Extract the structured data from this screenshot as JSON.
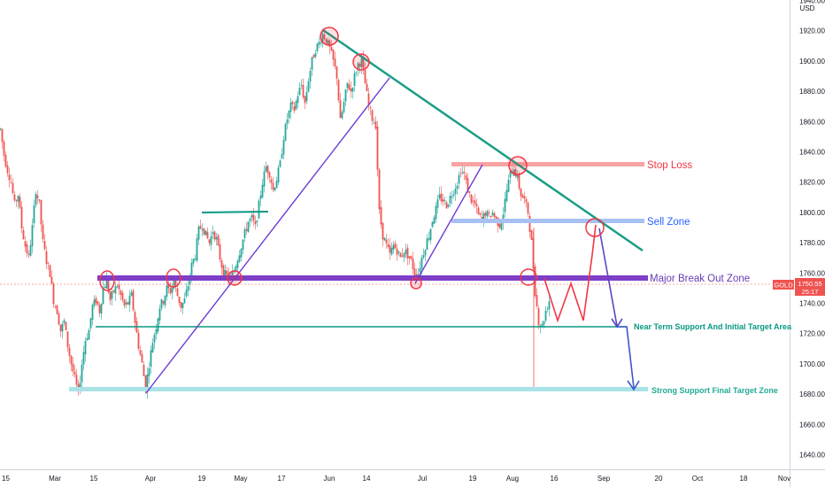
{
  "chart_data": {
    "type": "candlestick",
    "symbol": "GOLD",
    "currency": "USD",
    "last_price": "1750.55",
    "countdown": "25:17",
    "colors": {
      "up": "#26a69a",
      "down": "#ef5350",
      "price_tag": "#ef5350"
    },
    "y_ticks": [
      "1940.00",
      "1920.00",
      "1900.00",
      "1880.00",
      "1860.00",
      "1840.00",
      "1820.00",
      "1800.00",
      "1780.00",
      "1760.00",
      "1740.00",
      "1720.00",
      "1700.00",
      "1680.00",
      "1660.00",
      "1640.00"
    ],
    "x_ticks": [
      "15",
      "Mar",
      "15",
      "Apr",
      "19",
      "May",
      "17",
      "Jun",
      "14",
      "Jul",
      "19",
      "Aug",
      "16",
      "Sep",
      "20",
      "Oct",
      "18",
      "Nov"
    ],
    "ylim": [
      1632,
      1941
    ],
    "annotations": {
      "stop_loss": "Stop Loss",
      "sell_zone": "Sell Zone",
      "breakout": "Major Break Out Zone",
      "near_support": "Near Term Support And Initial Target Area",
      "strong_support": "Strong Support Final Target Zone"
    },
    "annotation_colors": {
      "stop_loss": "#f23645",
      "sell_zone": "#2962ff",
      "breakout": "#673ab7",
      "near_support": "#089981",
      "strong_support": "#22ab94"
    },
    "price_path": [
      [
        0,
        1855
      ],
      [
        4,
        1838
      ],
      [
        8,
        1828
      ],
      [
        12,
        1820
      ],
      [
        16,
        1805
      ],
      [
        20,
        1812
      ],
      [
        24,
        1790
      ],
      [
        28,
        1778
      ],
      [
        32,
        1770
      ],
      [
        36,
        1790
      ],
      [
        40,
        1815
      ],
      [
        44,
        1805
      ],
      [
        48,
        1780
      ],
      [
        52,
        1768
      ],
      [
        56,
        1760
      ],
      [
        60,
        1742
      ],
      [
        64,
        1735
      ],
      [
        68,
        1722
      ],
      [
        72,
        1728
      ],
      [
        76,
        1712
      ],
      [
        80,
        1700
      ],
      [
        84,
        1690
      ],
      [
        88,
        1680
      ],
      [
        92,
        1700
      ],
      [
        96,
        1716
      ],
      [
        100,
        1722
      ],
      [
        104,
        1738
      ],
      [
        108,
        1742
      ],
      [
        112,
        1735
      ],
      [
        116,
        1750
      ],
      [
        120,
        1755
      ],
      [
        124,
        1742
      ],
      [
        128,
        1748
      ],
      [
        132,
        1752
      ],
      [
        136,
        1745
      ],
      [
        140,
        1738
      ],
      [
        144,
        1740
      ],
      [
        148,
        1745
      ],
      [
        152,
        1728
      ],
      [
        156,
        1712
      ],
      [
        160,
        1700
      ],
      [
        164,
        1684
      ],
      [
        168,
        1700
      ],
      [
        172,
        1715
      ],
      [
        176,
        1725
      ],
      [
        180,
        1738
      ],
      [
        184,
        1742
      ],
      [
        188,
        1750
      ],
      [
        192,
        1748
      ],
      [
        196,
        1755
      ],
      [
        200,
        1745
      ],
      [
        204,
        1738
      ],
      [
        208,
        1742
      ],
      [
        212,
        1752
      ],
      [
        216,
        1765
      ],
      [
        220,
        1772
      ],
      [
        224,
        1788
      ],
      [
        228,
        1792
      ],
      [
        232,
        1785
      ],
      [
        236,
        1780
      ],
      [
        240,
        1788
      ],
      [
        244,
        1782
      ],
      [
        248,
        1770
      ],
      [
        252,
        1760
      ],
      [
        256,
        1758
      ],
      [
        260,
        1756
      ],
      [
        264,
        1762
      ],
      [
        268,
        1770
      ],
      [
        272,
        1778
      ],
      [
        276,
        1786
      ],
      [
        280,
        1794
      ],
      [
        284,
        1796
      ],
      [
        288,
        1790
      ],
      [
        292,
        1805
      ],
      [
        296,
        1820
      ],
      [
        300,
        1830
      ],
      [
        304,
        1826
      ],
      [
        308,
        1815
      ],
      [
        312,
        1822
      ],
      [
        316,
        1832
      ],
      [
        320,
        1850
      ],
      [
        324,
        1862
      ],
      [
        328,
        1870
      ],
      [
        332,
        1868
      ],
      [
        336,
        1878
      ],
      [
        340,
        1884
      ],
      [
        344,
        1872
      ],
      [
        348,
        1888
      ],
      [
        352,
        1900
      ],
      [
        356,
        1908
      ],
      [
        360,
        1912
      ],
      [
        364,
        1918
      ],
      [
        368,
        1914
      ],
      [
        372,
        1908
      ],
      [
        376,
        1900
      ],
      [
        380,
        1890
      ],
      [
        384,
        1860
      ],
      [
        388,
        1872
      ],
      [
        392,
        1885
      ],
      [
        396,
        1880
      ],
      [
        400,
        1890
      ],
      [
        404,
        1898
      ],
      [
        408,
        1900
      ],
      [
        412,
        1885
      ],
      [
        416,
        1870
      ],
      [
        420,
        1862
      ],
      [
        424,
        1858
      ],
      [
        428,
        1800
      ],
      [
        432,
        1785
      ],
      [
        436,
        1778
      ],
      [
        440,
        1772
      ],
      [
        444,
        1778
      ],
      [
        448,
        1775
      ],
      [
        452,
        1770
      ],
      [
        456,
        1775
      ],
      [
        460,
        1772
      ],
      [
        464,
        1768
      ],
      [
        468,
        1760
      ],
      [
        472,
        1760
      ],
      [
        476,
        1770
      ],
      [
        480,
        1778
      ],
      [
        484,
        1785
      ],
      [
        488,
        1795
      ],
      [
        492,
        1802
      ],
      [
        496,
        1810
      ],
      [
        500,
        1808
      ],
      [
        504,
        1805
      ],
      [
        508,
        1810
      ],
      [
        512,
        1815
      ],
      [
        516,
        1820
      ],
      [
        520,
        1828
      ],
      [
        524,
        1825
      ],
      [
        528,
        1815
      ],
      [
        532,
        1808
      ],
      [
        536,
        1805
      ],
      [
        540,
        1798
      ],
      [
        544,
        1795
      ],
      [
        548,
        1800
      ],
      [
        552,
        1797
      ],
      [
        556,
        1800
      ],
      [
        560,
        1795
      ],
      [
        564,
        1792
      ],
      [
        568,
        1800
      ],
      [
        572,
        1815
      ],
      [
        576,
        1825
      ],
      [
        580,
        1830
      ],
      [
        584,
        1822
      ],
      [
        588,
        1812
      ],
      [
        592,
        1808
      ],
      [
        596,
        1800
      ],
      [
        600,
        1780
      ],
      [
        604,
        1748
      ],
      [
        608,
        1728
      ],
      [
        612,
        1725
      ],
      [
        616,
        1735
      ],
      [
        620,
        1742
      ]
    ],
    "down_wick": [
      603,
      1683
    ]
  }
}
